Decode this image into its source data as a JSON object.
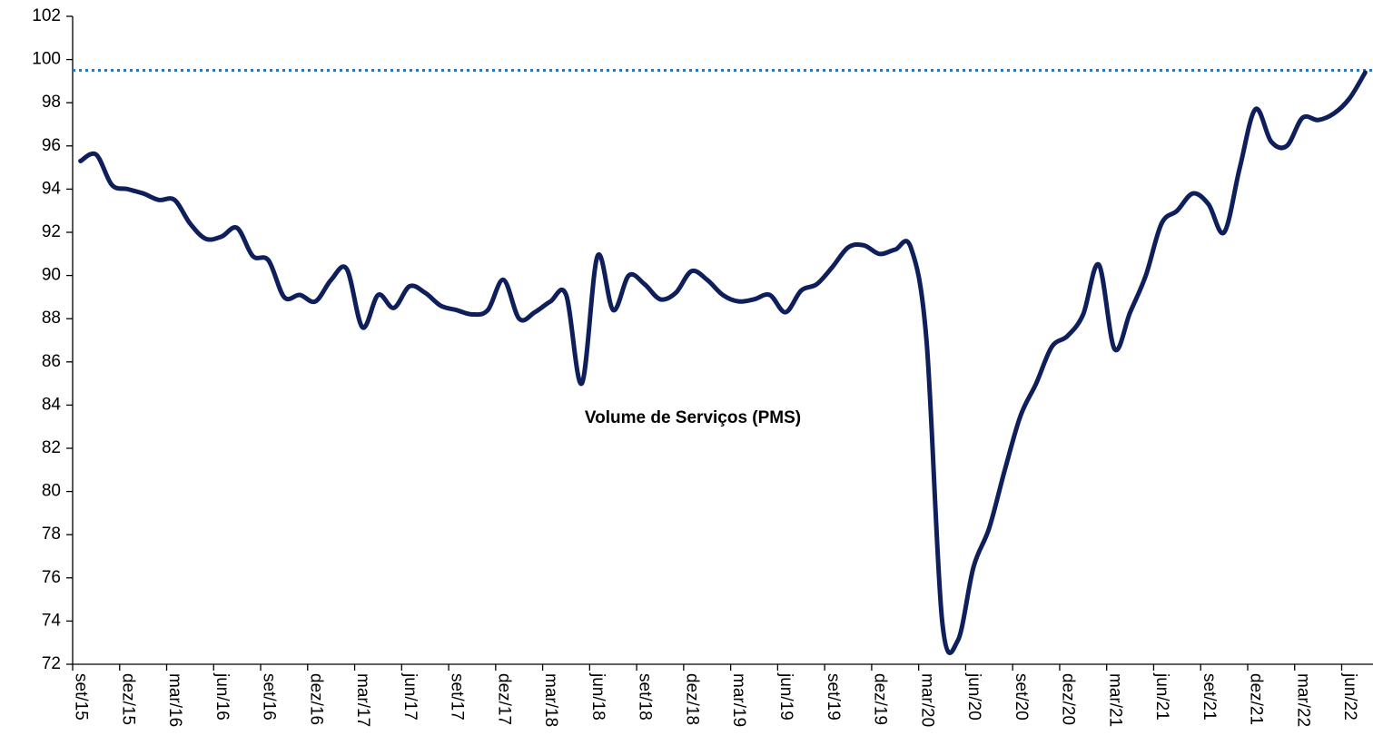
{
  "chart_data": {
    "type": "line",
    "categories": [
      "set/15",
      null,
      null,
      "dez/15",
      null,
      null,
      "mar/16",
      null,
      null,
      "jun/16",
      null,
      null,
      "set/16",
      null,
      null,
      "dez/16",
      null,
      null,
      "mar/17",
      null,
      null,
      "jun/17",
      null,
      null,
      "set/17",
      null,
      null,
      "dez/17",
      null,
      null,
      "mar/18",
      null,
      null,
      "jun/18",
      null,
      null,
      "set/18",
      null,
      null,
      "dez/18",
      null,
      null,
      "mar/19",
      null,
      null,
      "jun/19",
      null,
      null,
      "set/19",
      null,
      null,
      "dez/19",
      null,
      null,
      "mar/20",
      null,
      null,
      "jun/20",
      null,
      null,
      "set/20",
      null,
      null,
      "dez/20",
      null,
      null,
      "mar/21",
      null,
      null,
      "jun/21",
      null,
      null,
      "set/21",
      null,
      null,
      "dez/21",
      null,
      null,
      "mar/22",
      null,
      null,
      "jun/22",
      null
    ],
    "series": [
      {
        "name": "Volume de Serviços (PMS)",
        "color": "#0e1f5b",
        "values": [
          95.3,
          95.6,
          94.2,
          94.0,
          93.8,
          93.5,
          93.5,
          92.4,
          91.7,
          91.8,
          92.2,
          90.9,
          90.7,
          89.0,
          89.1,
          88.8,
          89.8,
          90.3,
          87.6,
          89.1,
          88.5,
          89.5,
          89.2,
          88.6,
          88.4,
          88.2,
          88.4,
          89.8,
          88.0,
          88.3,
          88.8,
          89.1,
          85.0,
          90.9,
          88.4,
          90.0,
          89.6,
          88.9,
          89.2,
          90.2,
          89.8,
          89.1,
          88.8,
          88.9,
          89.1,
          88.3,
          89.3,
          89.6,
          90.4,
          91.3,
          91.4,
          91.0,
          91.2,
          91.3,
          87.0,
          74.0,
          73.1,
          76.5,
          78.3,
          81.0,
          83.5,
          85.0,
          86.7,
          87.2,
          88.2,
          90.5,
          86.6,
          88.3,
          90.0,
          92.4,
          93.0,
          93.8,
          93.3,
          92.0,
          95.0,
          97.7,
          96.2,
          96.0,
          97.3,
          97.2,
          97.5,
          98.2,
          99.4
        ]
      }
    ],
    "ylim": [
      72,
      102
    ],
    "yticks": [
      72,
      74,
      76,
      78,
      80,
      82,
      84,
      86,
      88,
      90,
      92,
      94,
      96,
      98,
      100,
      102
    ],
    "reference_line": {
      "value": 99.5,
      "color": "#2e75b6"
    },
    "grid": false
  }
}
